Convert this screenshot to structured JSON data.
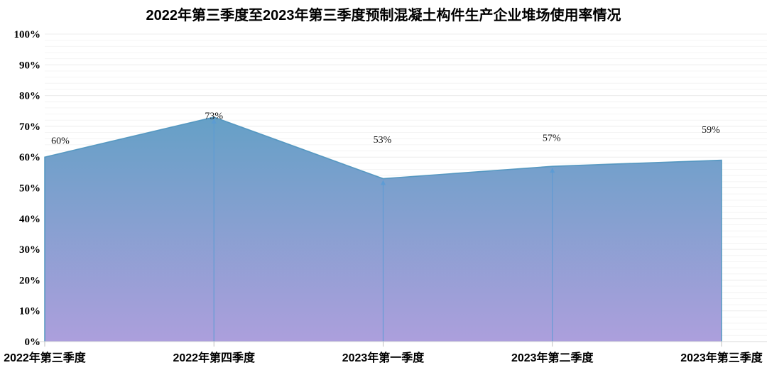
{
  "page": {
    "background_color": "#ffffff"
  },
  "chart_data": {
    "type": "area",
    "title": "2022年第三季度至2023年第三季度预制混凝土构件生产企业堆场使用率情况",
    "categories": [
      "2022年第三季度",
      "2022年第四季度",
      "2023年第一季度",
      "2023年第二季度",
      "2023年第三季度"
    ],
    "values": [
      60,
      73,
      53,
      57,
      59
    ],
    "data_labels": [
      "60%",
      "73%",
      "53%",
      "57%",
      "59%"
    ],
    "xlabel": "",
    "ylabel": "",
    "ylim": [
      0,
      100
    ],
    "y_major_step": 10,
    "y_minor_step": 2,
    "y_tick_labels": [
      "0%",
      "10%",
      "20%",
      "30%",
      "40%",
      "50%",
      "60%",
      "70%",
      "80%",
      "90%",
      "100%"
    ],
    "grid": "horizontal",
    "legend": "none",
    "drop_lines": true,
    "colors": {
      "area_gradient_top": "#64A0C6",
      "area_gradient_bottom": "#AC9FDC",
      "area_border": "#4E94BE",
      "drop_line": "#5B9BD5",
      "grid_major": "#ececec",
      "grid_minor": "#f4f4f4",
      "axis_line": "#d9d9d9",
      "tick_mark": "#bfbfbf",
      "text": "#000000"
    }
  }
}
